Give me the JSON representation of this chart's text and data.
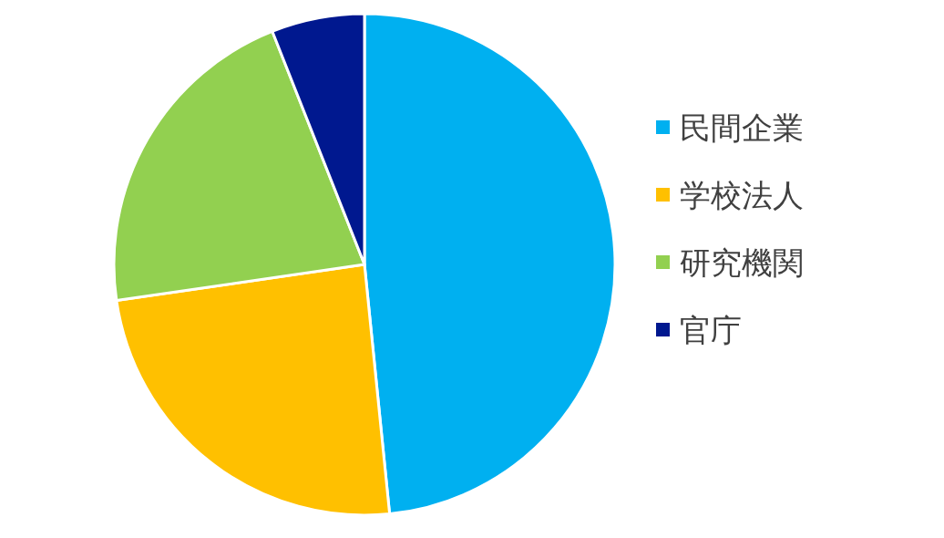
{
  "chart_data": {
    "type": "pie",
    "categories": [
      "民間企業",
      "学校法人",
      "研究機関",
      "官庁"
    ],
    "values": [
      48.4,
      24.3,
      21.3,
      6.0
    ],
    "colors": [
      "#00b0f0",
      "#ffc000",
      "#92d050",
      "#00188f"
    ],
    "legend": "right"
  }
}
